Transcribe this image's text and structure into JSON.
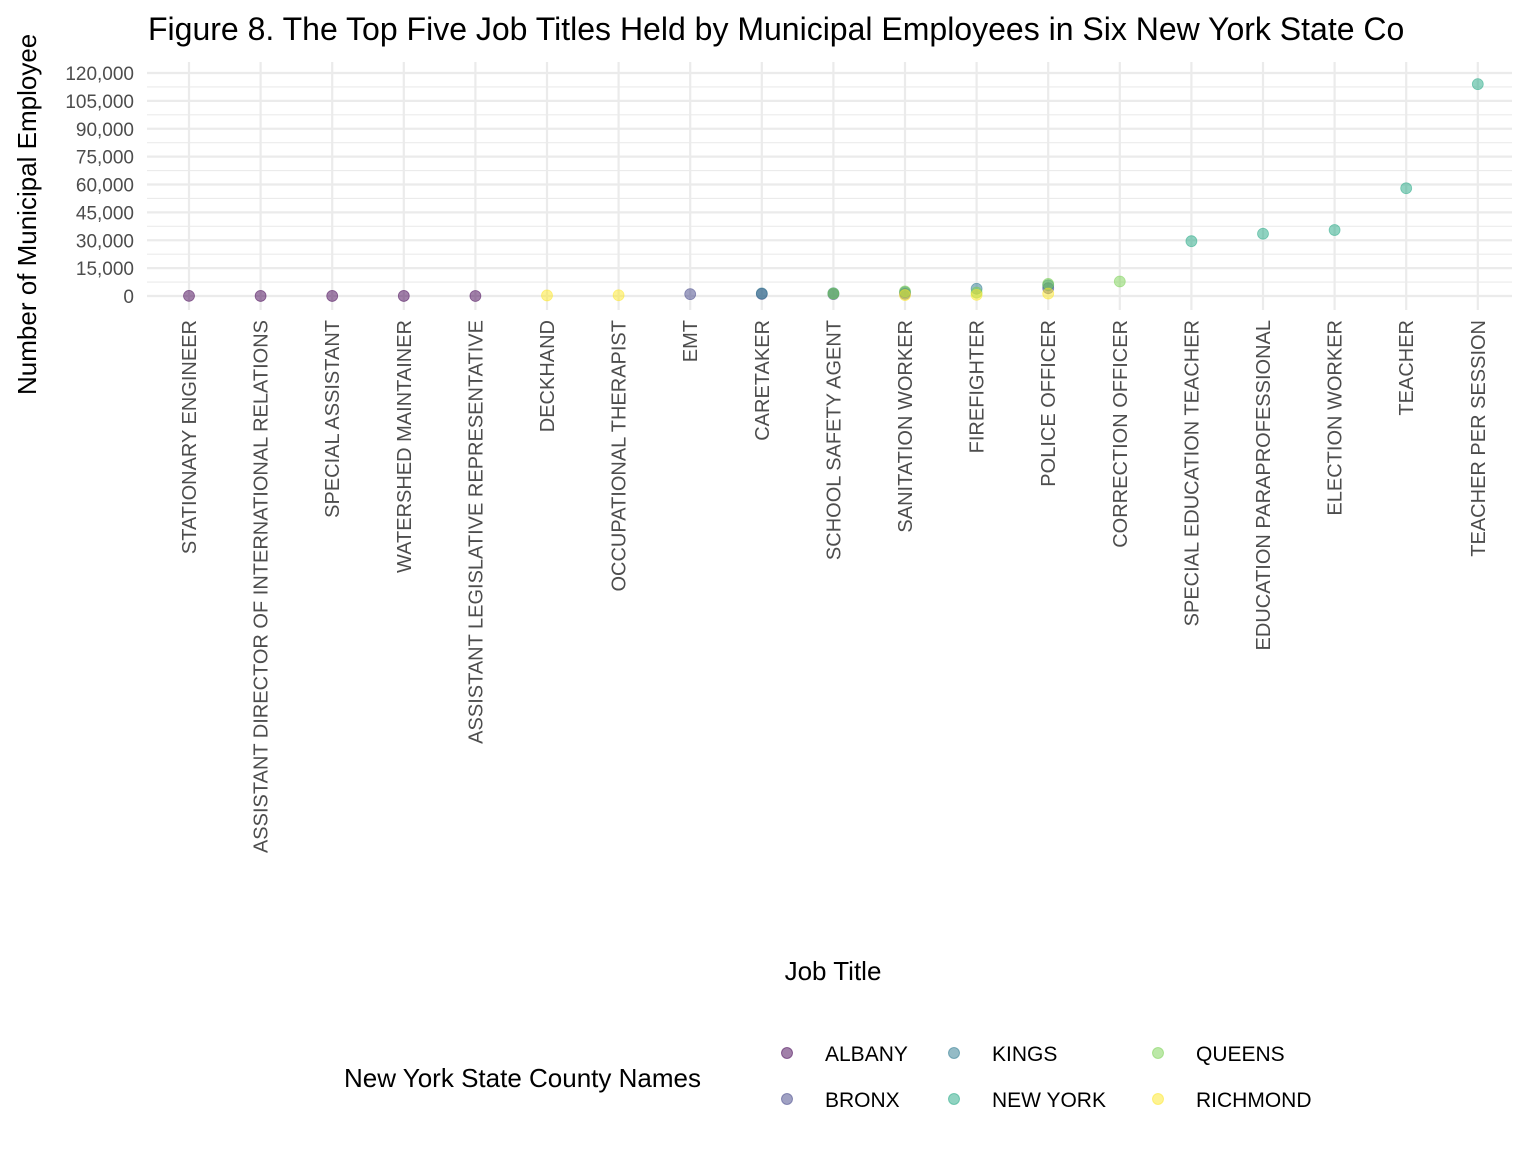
{
  "chart_data": {
    "type": "scatter",
    "title": "Figure 8. The Top Five Job Titles Held by Municipal Employees in Six New York State Co",
    "xlabel": "Job Title",
    "ylabel": "Number of Municipal Employee",
    "ylim": [
      0,
      125000
    ],
    "yticks": [
      0,
      15000,
      30000,
      45000,
      60000,
      75000,
      90000,
      105000,
      120000
    ],
    "ytick_labels": [
      "0",
      "15,000",
      "30,000",
      "45,000",
      "60,000",
      "75,000",
      "90,000",
      "105,000",
      "120,000"
    ],
    "grid": true,
    "categories": [
      "STATIONARY ENGINEER",
      "ASSISTANT DIRECTOR OF INTERNATIONAL RELATIONS",
      "SPECIAL ASSISTANT",
      "WATERSHED MAINTAINER",
      "ASSISTANT LEGISLATIVE REPRESENTATIVE",
      "DECKHAND",
      "OCCUPATIONAL THERAPIST",
      "EMT",
      "CARETAKER",
      "SCHOOL SAFETY AGENT",
      "SANITATION WORKER",
      "FIREFIGHTER",
      "POLICE OFFICER",
      "CORRECTION OFFICER",
      "SPECIAL EDUCATION TEACHER",
      "EDUCATION PARAPROFESSIONAL",
      "ELECTION WORKER",
      "TEACHER",
      "TEACHER PER SESSION"
    ],
    "legend": {
      "title": "New York State County Names",
      "position": "bottom",
      "entries": [
        "ALBANY",
        "BRONX",
        "KINGS",
        "NEW YORK",
        "QUEENS",
        "RICHMOND"
      ]
    },
    "series": [
      {
        "name": "ALBANY",
        "color": "#440154",
        "points": [
          {
            "x": "STATIONARY ENGINEER",
            "y": 60
          },
          {
            "x": "ASSISTANT DIRECTOR OF INTERNATIONAL RELATIONS",
            "y": 30
          },
          {
            "x": "SPECIAL ASSISTANT",
            "y": 30
          },
          {
            "x": "WATERSHED MAINTAINER",
            "y": 30
          },
          {
            "x": "ASSISTANT LEGISLATIVE REPRESENTATIVE",
            "y": 20
          }
        ]
      },
      {
        "name": "BRONX",
        "color": "#414487",
        "points": [
          {
            "x": "EMT",
            "y": 1000
          },
          {
            "x": "CARETAKER",
            "y": 1100
          },
          {
            "x": "SCHOOL SAFETY AGENT",
            "y": 1000
          },
          {
            "x": "SANITATION WORKER",
            "y": 1200
          },
          {
            "x": "POLICE OFFICER",
            "y": 4200
          }
        ]
      },
      {
        "name": "KINGS",
        "color": "#2A788E",
        "points": [
          {
            "x": "CARETAKER",
            "y": 1400
          },
          {
            "x": "SCHOOL SAFETY AGENT",
            "y": 1500
          },
          {
            "x": "SANITATION WORKER",
            "y": 2000
          },
          {
            "x": "FIREFIGHTER",
            "y": 3900
          },
          {
            "x": "POLICE OFFICER",
            "y": 5800
          }
        ]
      },
      {
        "name": "NEW YORK",
        "color": "#22A884",
        "points": [
          {
            "x": "SPECIAL EDUCATION TEACHER",
            "y": 29500
          },
          {
            "x": "EDUCATION PARAPROFESSIONAL",
            "y": 33500
          },
          {
            "x": "ELECTION WORKER",
            "y": 35500
          },
          {
            "x": "TEACHER",
            "y": 58000
          },
          {
            "x": "TEACHER PER SESSION",
            "y": 114000
          }
        ]
      },
      {
        "name": "QUEENS",
        "color": "#7AD151",
        "points": [
          {
            "x": "SCHOOL SAFETY AGENT",
            "y": 1300
          },
          {
            "x": "SANITATION WORKER",
            "y": 2500
          },
          {
            "x": "FIREFIGHTER",
            "y": 1800
          },
          {
            "x": "POLICE OFFICER",
            "y": 6500
          },
          {
            "x": "CORRECTION OFFICER",
            "y": 7800
          }
        ]
      },
      {
        "name": "RICHMOND",
        "color": "#FDE725",
        "points": [
          {
            "x": "DECKHAND",
            "y": 300
          },
          {
            "x": "OCCUPATIONAL THERAPIST",
            "y": 400
          },
          {
            "x": "SANITATION WORKER",
            "y": 500
          },
          {
            "x": "FIREFIGHTER",
            "y": 600
          },
          {
            "x": "POLICE OFFICER",
            "y": 1300
          }
        ]
      }
    ]
  }
}
